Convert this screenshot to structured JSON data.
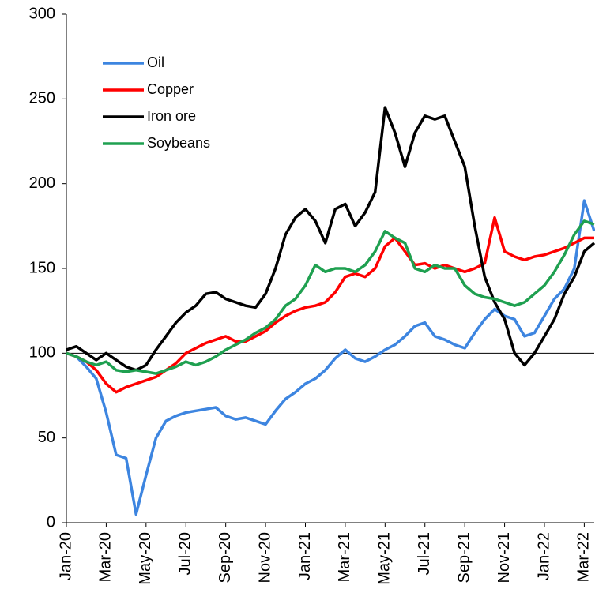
{
  "chart_data": {
    "type": "line",
    "x": [
      0,
      0.5,
      1,
      1.5,
      2,
      2.5,
      3,
      3.5,
      4,
      4.5,
      5,
      5.5,
      6,
      6.5,
      7,
      7.5,
      8,
      8.5,
      9,
      9.5,
      10,
      10.5,
      11,
      11.5,
      12,
      12.5,
      13,
      13.5,
      14,
      14.5,
      15,
      15.5,
      16,
      16.5,
      17,
      17.5,
      18,
      18.5,
      19,
      19.5,
      20,
      20.5,
      21,
      21.5,
      22,
      22.5,
      23,
      23.5,
      24,
      24.5,
      25,
      25.5,
      26,
      26.5
    ],
    "series": [
      {
        "name": "Oil",
        "color": "#3d85e0",
        "values": [
          100,
          98,
          92,
          85,
          65,
          40,
          38,
          5,
          28,
          50,
          60,
          63,
          65,
          66,
          67,
          68,
          63,
          61,
          62,
          60,
          58,
          66,
          73,
          77,
          82,
          85,
          90,
          97,
          102,
          97,
          95,
          98,
          102,
          105,
          110,
          116,
          118,
          110,
          108,
          105,
          103,
          112,
          120,
          126,
          122,
          120,
          110,
          112,
          122,
          132,
          138,
          150,
          190,
          172
        ]
      },
      {
        "name": "Copper",
        "color": "#ff0000",
        "values": [
          100,
          98,
          95,
          90,
          82,
          77,
          80,
          82,
          84,
          86,
          90,
          94,
          100,
          103,
          106,
          108,
          110,
          107,
          107,
          110,
          113,
          118,
          122,
          125,
          127,
          128,
          130,
          136,
          145,
          147,
          145,
          150,
          163,
          168,
          160,
          152,
          153,
          150,
          152,
          150,
          148,
          150,
          153,
          180,
          160,
          157,
          155,
          157,
          158,
          160,
          162,
          165,
          168,
          168
        ]
      },
      {
        "name": "Iron ore",
        "color": "#000000",
        "values": [
          102,
          104,
          100,
          96,
          100,
          96,
          92,
          90,
          93,
          102,
          110,
          118,
          124,
          128,
          135,
          136,
          132,
          130,
          128,
          127,
          135,
          150,
          170,
          180,
          185,
          178,
          165,
          185,
          188,
          175,
          183,
          195,
          245,
          230,
          210,
          230,
          240,
          238,
          240,
          225,
          210,
          175,
          145,
          130,
          120,
          100,
          93,
          100,
          110,
          120,
          135,
          145,
          160,
          165
        ]
      },
      {
        "name": "Soybeans",
        "color": "#1fa050",
        "values": [
          100,
          98,
          95,
          93,
          95,
          90,
          89,
          90,
          89,
          88,
          90,
          92,
          95,
          93,
          95,
          98,
          102,
          105,
          108,
          112,
          115,
          120,
          128,
          132,
          140,
          152,
          148,
          150,
          150,
          148,
          152,
          160,
          172,
          168,
          165,
          150,
          148,
          152,
          150,
          150,
          140,
          135,
          133,
          132,
          130,
          128,
          130,
          135,
          140,
          148,
          158,
          170,
          178,
          176
        ]
      }
    ],
    "xlim": [
      0,
      26.5
    ],
    "xticks": [
      {
        "value": 0,
        "label": "Jan-20"
      },
      {
        "value": 2,
        "label": "Mar-20"
      },
      {
        "value": 4,
        "label": "May-20"
      },
      {
        "value": 6,
        "label": "Jul-20"
      },
      {
        "value": 8,
        "label": "Sep-20"
      },
      {
        "value": 10,
        "label": "Nov-20"
      },
      {
        "value": 12,
        "label": "Jan-21"
      },
      {
        "value": 14,
        "label": "Mar-21"
      },
      {
        "value": 16,
        "label": "May-21"
      },
      {
        "value": 18,
        "label": "Jul-21"
      },
      {
        "value": 20,
        "label": "Sep-21"
      },
      {
        "value": 22,
        "label": "Nov-21"
      },
      {
        "value": 24,
        "label": "Jan-22"
      },
      {
        "value": 26,
        "label": "Mar-22"
      }
    ],
    "ylim": [
      0,
      300
    ],
    "yticks": [
      0,
      50,
      100,
      150,
      200,
      250,
      300
    ],
    "reference_line": 100,
    "grid": false,
    "legend": "upper-left"
  }
}
